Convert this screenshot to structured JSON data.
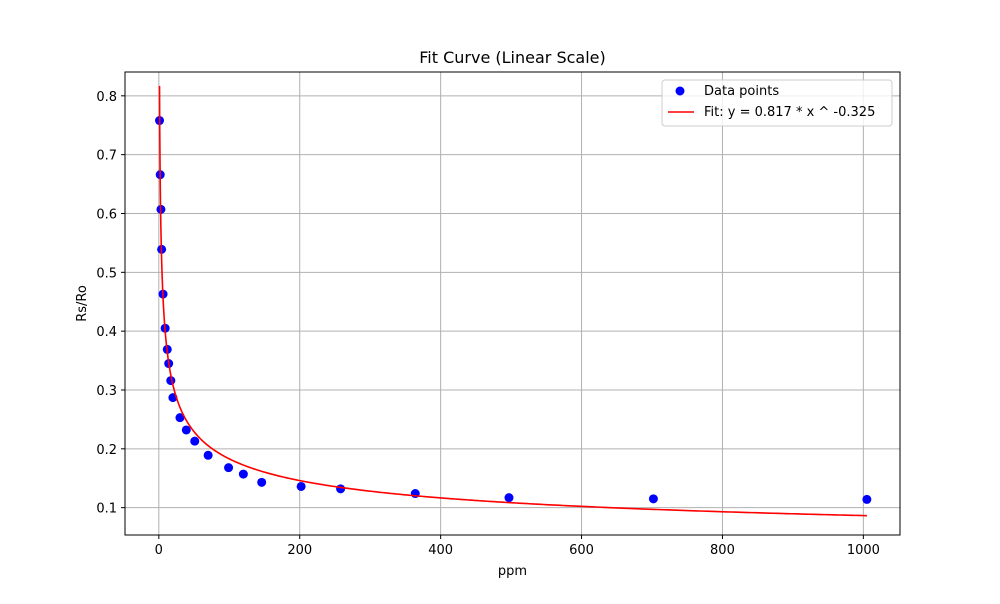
{
  "chart_data": {
    "type": "scatter",
    "title": "Fit Curve (Linear Scale)",
    "xlabel": "ppm",
    "ylabel": "Rs/Ro",
    "xlim": [
      -48,
      1052
    ],
    "ylim": [
      0.0535,
      0.8405
    ],
    "xticks": [
      0,
      200,
      400,
      600,
      800,
      1000
    ],
    "yticks": [
      0.1,
      0.2,
      0.3,
      0.4,
      0.5,
      0.6,
      0.7,
      0.8
    ],
    "xtick_labels": [
      "0",
      "200",
      "400",
      "600",
      "800",
      "1000"
    ],
    "ytick_labels": [
      "0.1",
      "0.2",
      "0.3",
      "0.4",
      "0.5",
      "0.6",
      "0.7",
      "0.8"
    ],
    "grid": true,
    "legend_position": "top-right",
    "series": [
      {
        "name": "Data points",
        "kind": "scatter",
        "color": "#0000ff",
        "x": [
          1,
          2,
          3,
          4,
          6,
          9,
          12,
          14,
          17,
          20,
          30,
          39,
          51,
          70,
          99,
          120,
          146,
          202,
          258,
          364,
          497,
          702,
          1005
        ],
        "y": [
          0.758,
          0.666,
          0.607,
          0.539,
          0.463,
          0.405,
          0.369,
          0.345,
          0.316,
          0.287,
          0.253,
          0.232,
          0.213,
          0.189,
          0.168,
          0.157,
          0.143,
          0.136,
          0.132,
          0.124,
          0.117,
          0.115,
          0.114
        ]
      },
      {
        "name": "Fit: y = 0.817 * x ^ -0.325",
        "kind": "line",
        "color": "#ff0000",
        "a": 0.817,
        "b": -0.325,
        "x_range": [
          1,
          1005
        ]
      }
    ]
  }
}
